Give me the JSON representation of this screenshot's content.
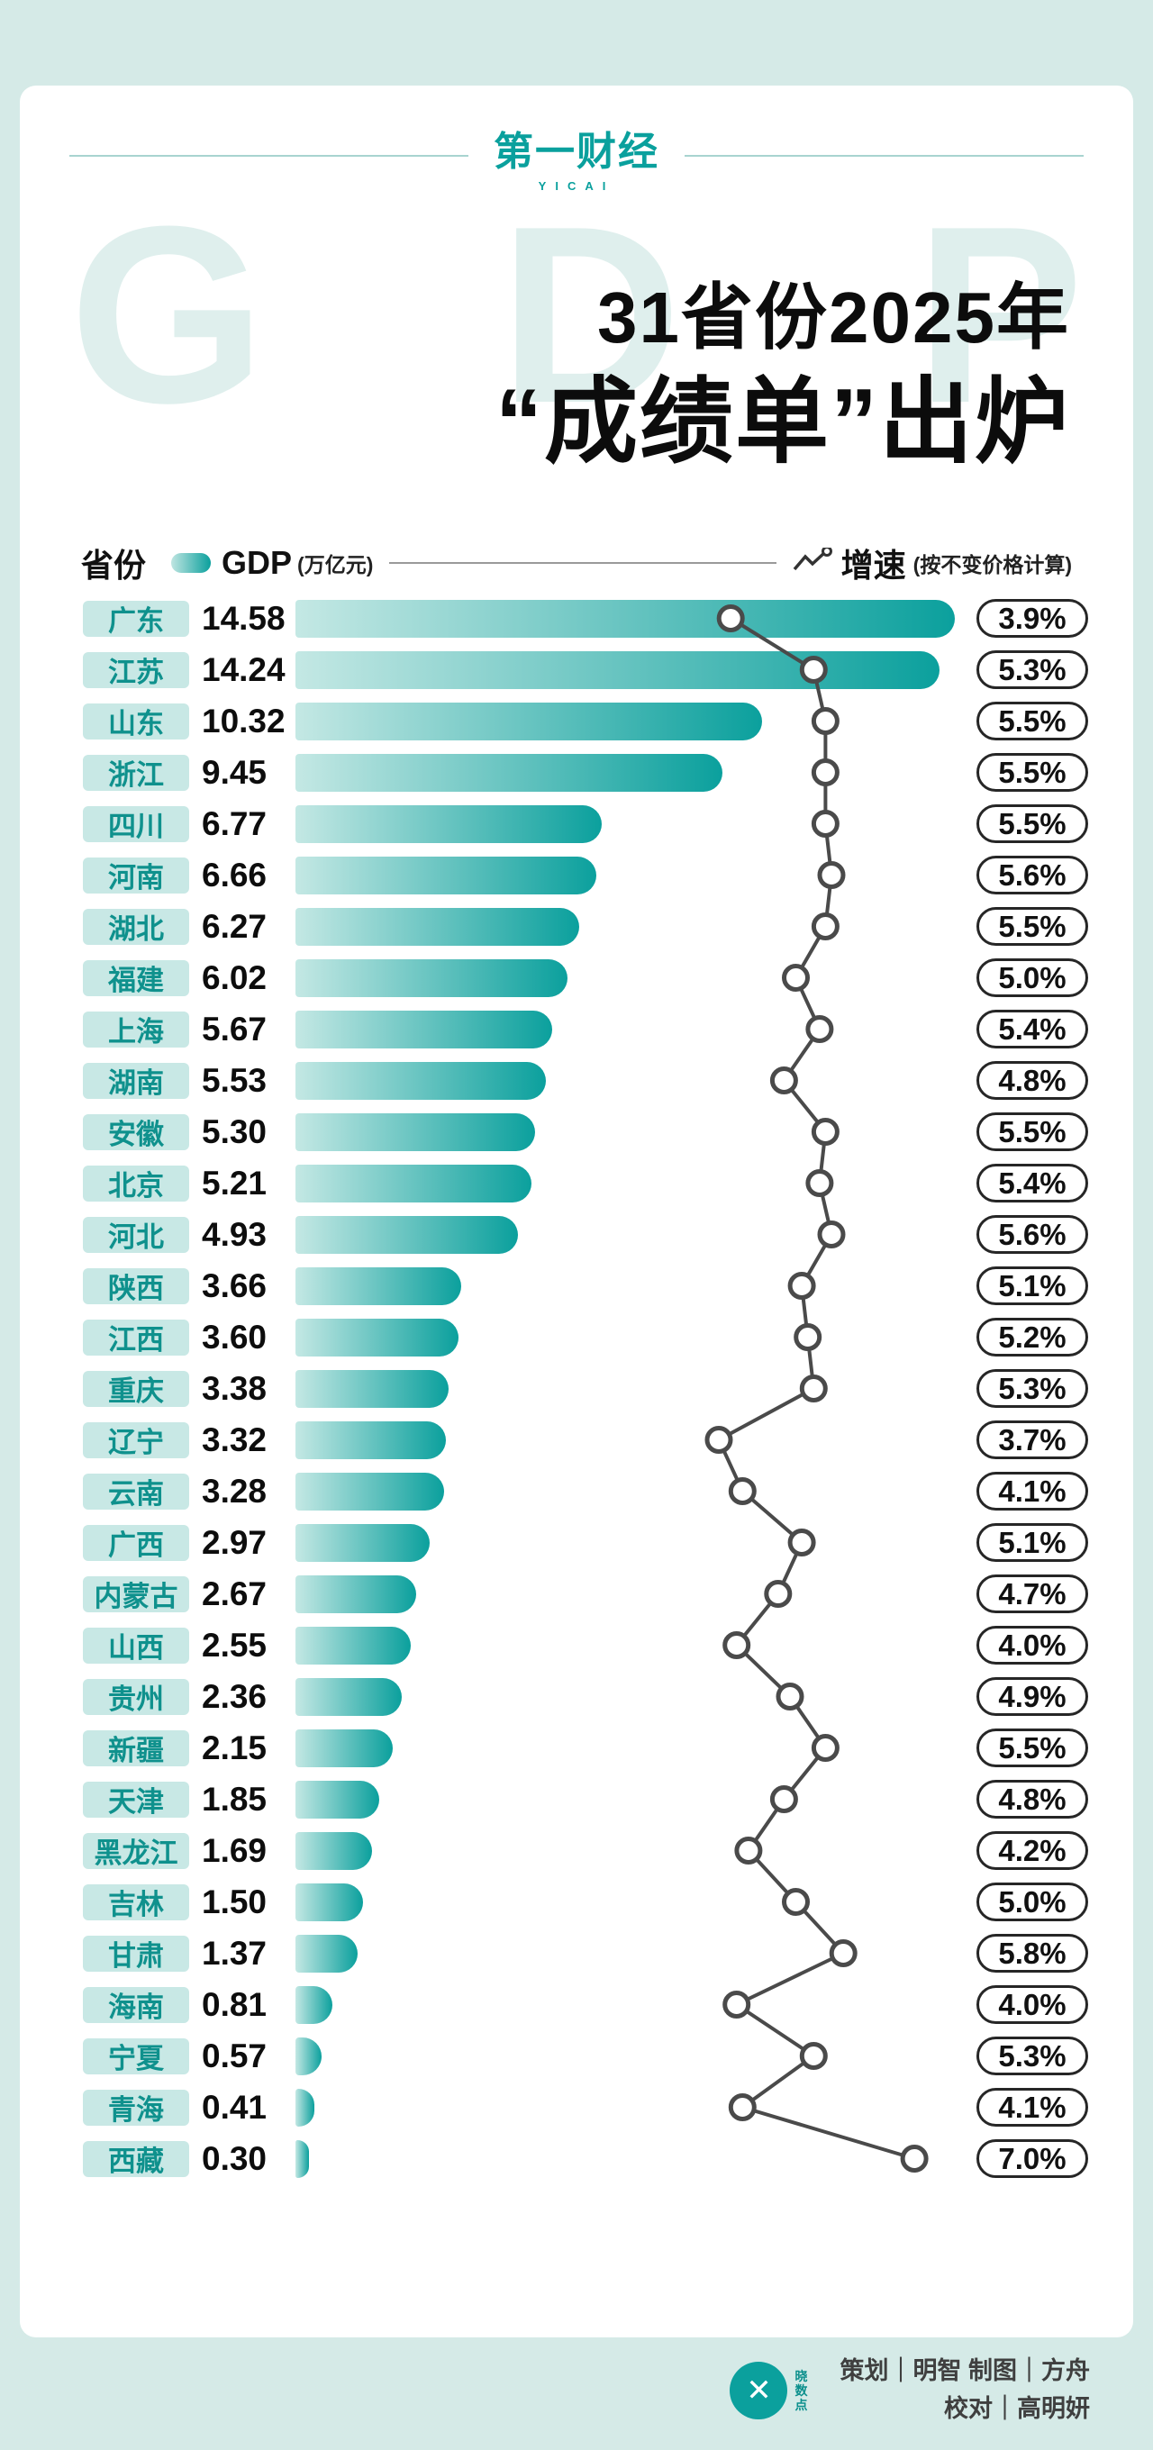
{
  "brand": {
    "logo_text": "第一财经",
    "logo_sub": "YICAI"
  },
  "title": {
    "line1": "31省份2025年",
    "line2": "“成绩单”出炉",
    "watermark": "GDP"
  },
  "legend": {
    "province": "省份",
    "gdp_label": "GDP",
    "gdp_unit": "(万亿元)",
    "growth_label": "增速",
    "growth_note": "(按不变价格计算)"
  },
  "footer": {
    "logo_name": "晓数点",
    "credit_line1": "策划｜明智  制图｜方舟",
    "credit_line2": "校对｜高明妍"
  },
  "colors": {
    "background": "#d5eae7",
    "card": "#ffffff",
    "brand_teal": "#0aa09d",
    "bar_gradient_start": "#c4e8e4",
    "bar_gradient_end": "#0ba09d",
    "badge_bg": "#c8e8e5",
    "badge_text": "#0f918d",
    "line_color": "#4a4a4a",
    "pill_border": "#262626"
  },
  "chart_data": {
    "type": "bar",
    "title": "31省份2025年“成绩单”出炉",
    "subtitle": "GDP(万亿元)与增速(按不变价格计算)",
    "categories": [
      "广东",
      "江苏",
      "山东",
      "浙江",
      "四川",
      "河南",
      "湖北",
      "福建",
      "上海",
      "湖南",
      "安徽",
      "北京",
      "河北",
      "陕西",
      "江西",
      "重庆",
      "辽宁",
      "云南",
      "广西",
      "内蒙古",
      "山西",
      "贵州",
      "新疆",
      "天津",
      "黑龙江",
      "吉林",
      "甘肃",
      "海南",
      "宁夏",
      "青海",
      "西藏"
    ],
    "series": [
      {
        "name": "GDP",
        "unit": "万亿元",
        "values": [
          14.58,
          14.24,
          10.32,
          9.45,
          6.77,
          6.66,
          6.27,
          6.02,
          5.67,
          5.53,
          5.3,
          5.21,
          4.93,
          3.66,
          3.6,
          3.38,
          3.32,
          3.28,
          2.97,
          2.67,
          2.55,
          2.36,
          2.15,
          1.85,
          1.69,
          1.5,
          1.37,
          0.81,
          0.57,
          0.41,
          0.3
        ]
      },
      {
        "name": "增速",
        "unit": "%",
        "values": [
          3.9,
          5.3,
          5.5,
          5.5,
          5.5,
          5.6,
          5.5,
          5.0,
          5.4,
          4.8,
          5.5,
          5.4,
          5.6,
          5.1,
          5.2,
          5.3,
          3.7,
          4.1,
          5.1,
          4.7,
          4.0,
          4.9,
          5.5,
          4.8,
          4.2,
          5.0,
          5.8,
          4.0,
          5.3,
          4.1,
          7.0
        ]
      }
    ],
    "gdp_axis_range": [
      0,
      14.58
    ],
    "growth_axis_range": [
      3.7,
      7.0
    ],
    "grid": false,
    "legend_position": "top"
  }
}
